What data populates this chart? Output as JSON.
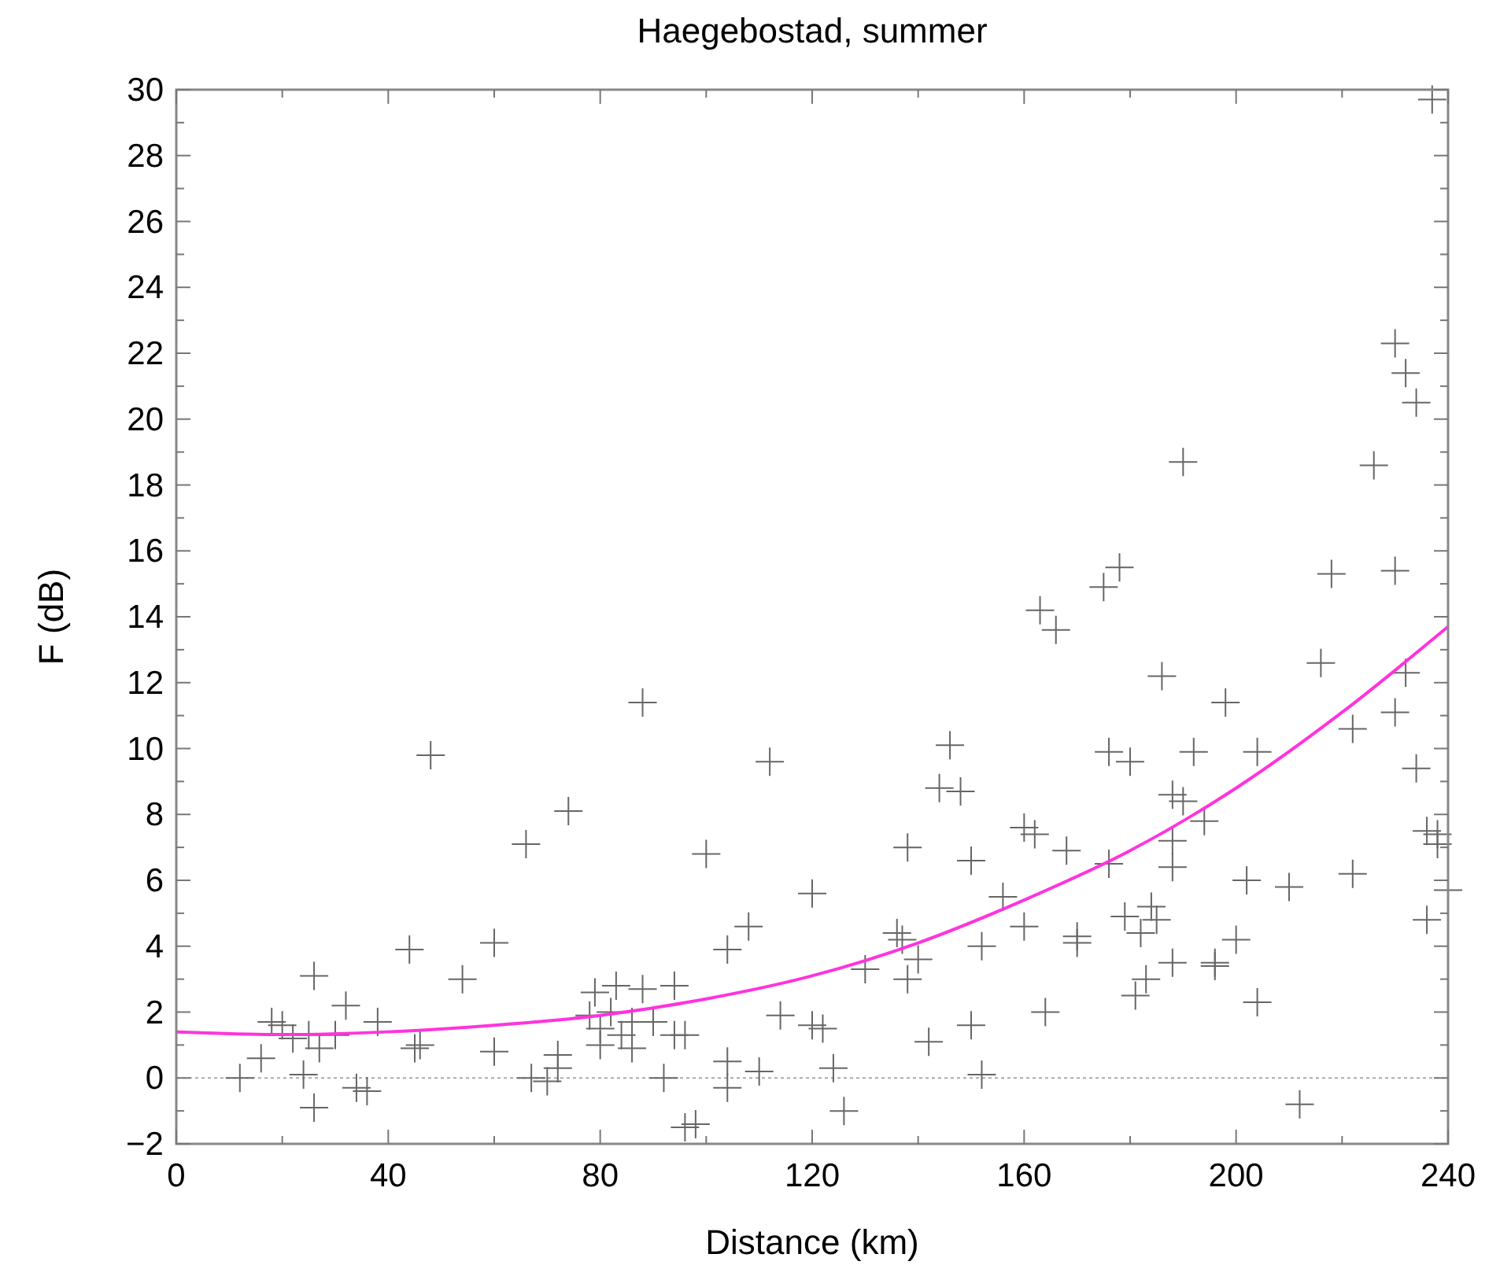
{
  "chart_data": {
    "type": "scatter",
    "title": "Haegebostad, summer",
    "xlabel": "Distance (km)",
    "ylabel": "F (dB)",
    "xlim": [
      0,
      240
    ],
    "ylim": [
      -2,
      30
    ],
    "xticks": [
      0,
      {
        "value": 20,
        "label": null
      },
      40,
      {
        "value": 60,
        "label": null
      },
      80,
      {
        "value": 100,
        "label": null
      },
      120,
      {
        "value": 140,
        "label": null
      },
      160,
      {
        "value": 180,
        "label": null
      },
      200,
      {
        "value": 220,
        "label": null
      },
      240
    ],
    "yticks": [
      {
        "value": -2,
        "label": "−2"
      },
      {
        "value": -1,
        "label": null
      },
      0,
      {
        "value": 1,
        "label": null
      },
      2,
      {
        "value": 3,
        "label": null
      },
      4,
      {
        "value": 5,
        "label": null
      },
      6,
      {
        "value": 7,
        "label": null
      },
      8,
      {
        "value": 9,
        "label": null
      },
      10,
      {
        "value": 11,
        "label": null
      },
      12,
      {
        "value": 13,
        "label": null
      },
      14,
      {
        "value": 15,
        "label": null
      },
      16,
      {
        "value": 17,
        "label": null
      },
      18,
      {
        "value": 19,
        "label": null
      },
      20,
      {
        "value": 21,
        "label": null
      },
      22,
      {
        "value": 23,
        "label": null
      },
      24,
      {
        "value": 25,
        "label": null
      },
      26,
      {
        "value": 27,
        "label": null
      },
      28,
      {
        "value": 29,
        "label": null
      },
      30
    ],
    "grid": false,
    "marker": "cross",
    "ref_lines": [
      {
        "axis": "y",
        "value": 0,
        "color": "#aaaaaa",
        "line_style": "dotted"
      }
    ],
    "series": [
      {
        "color": "#666666",
        "x": [
          12,
          16,
          18,
          20,
          22,
          24,
          25,
          26,
          26,
          27,
          30,
          32,
          34,
          36,
          38,
          44,
          45,
          46,
          48,
          54,
          60,
          60,
          66,
          67,
          70,
          72,
          72,
          74,
          78,
          79,
          80,
          80,
          82,
          83,
          84,
          86,
          86,
          88,
          88,
          90,
          92,
          94,
          94,
          96,
          96,
          98,
          100,
          104,
          104,
          104,
          108,
          110,
          112,
          114,
          120,
          120,
          122,
          124,
          126,
          130,
          136,
          137,
          138,
          138,
          140,
          142,
          144,
          146,
          148,
          150,
          150,
          152,
          152,
          156,
          160,
          160,
          162,
          163,
          164,
          166,
          168,
          170,
          170,
          175,
          176,
          176,
          178,
          179,
          180,
          181,
          182,
          183,
          184,
          185,
          186,
          188,
          188,
          188,
          188,
          190,
          190,
          192,
          194,
          196,
          196,
          198,
          200,
          202,
          204,
          204,
          210,
          212,
          216,
          218,
          222,
          222,
          226,
          230,
          230,
          230,
          232,
          232,
          234,
          234,
          236,
          236,
          237,
          238,
          238,
          240
        ],
        "values": [
          0,
          0.6,
          1.7,
          1.6,
          1.2,
          0.1,
          1.3,
          -0.9,
          3.1,
          0.9,
          1.3,
          2.2,
          -0.3,
          -0.4,
          1.7,
          3.9,
          0.9,
          1.0,
          9.8,
          3.0,
          0.8,
          4.1,
          7.1,
          0,
          -0.1,
          0.3,
          0.7,
          8.1,
          1.9,
          2.6,
          1.0,
          1.5,
          2.0,
          2.8,
          1.3,
          0.9,
          1.7,
          11.4,
          2.7,
          1.7,
          0,
          2.8,
          1.3,
          1.3,
          -1.5,
          -1.4,
          6.8,
          3.9,
          0.5,
          -0.3,
          4.6,
          0.2,
          9.6,
          1.9,
          5.6,
          1.6,
          1.5,
          0.3,
          -1.0,
          3.3,
          4.4,
          4.2,
          7.0,
          3.0,
          3.6,
          1.1,
          8.8,
          10.1,
          8.7,
          6.6,
          1.6,
          4.0,
          0.1,
          5.5,
          7.6,
          4.6,
          7.4,
          14.2,
          2.0,
          13.6,
          6.9,
          4.3,
          4.1,
          14.9,
          9.9,
          6.5,
          15.5,
          4.9,
          9.6,
          2.5,
          4.4,
          3.0,
          5.2,
          4.8,
          12.2,
          8.6,
          6.4,
          7.2,
          3.5,
          18.7,
          8.4,
          9.9,
          7.8,
          3.4,
          3.5,
          11.4,
          4.2,
          6.0,
          9.9,
          2.3,
          5.8,
          -0.8,
          12.6,
          15.3,
          10.6,
          6.2,
          18.6,
          22.3,
          15.4,
          11.1,
          21.4,
          12.3,
          20.5,
          9.4,
          7.5,
          4.8,
          29.7,
          7.1,
          7.4,
          5.7
        ]
      },
      {
        "type": "line",
        "color": "#ff33dd",
        "marker": "none",
        "line_style": "solid",
        "x": [
          0,
          20,
          40,
          60,
          80,
          100,
          120,
          140,
          160,
          180,
          200,
          220,
          240
        ],
        "values": [
          1.4,
          1.32,
          1.4,
          1.6,
          1.9,
          2.4,
          3.1,
          4.1,
          5.4,
          6.9,
          8.8,
          11.1,
          13.7
        ]
      }
    ]
  }
}
